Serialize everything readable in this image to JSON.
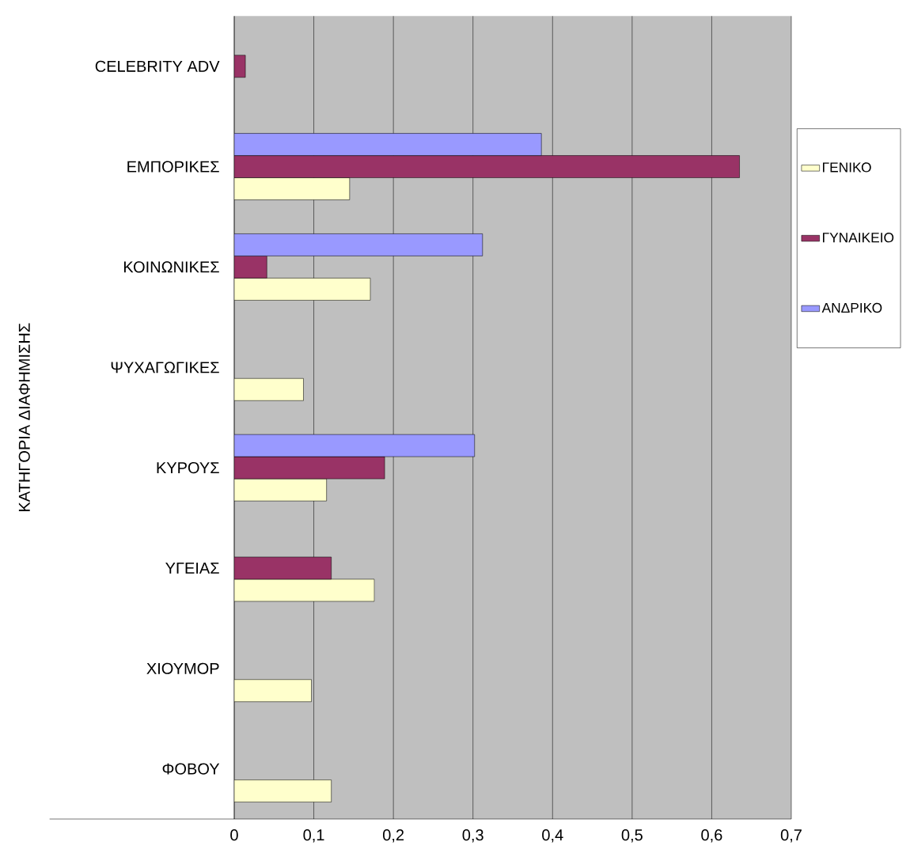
{
  "chart_data": {
    "type": "bar",
    "orientation": "horizontal",
    "ylabel": "ΚΑΤΗΓΟΡΙΑ ΔΙΑΦΗΜΙΣΗΣ",
    "categories": [
      "CELEBRITY ADV",
      "ΕΜΠΟΡΙΚΕΣ",
      "ΚΟΙΝΩΝΙΚΕΣ",
      "ΨΥΧΑΓΩΓΙΚΕΣ",
      "ΚΥΡΟΥΣ",
      "ΥΓΕΙΑΣ",
      "ΧΙΟΥΜΟΡ",
      "ΦΟΒΟΥ"
    ],
    "series": [
      {
        "name": "ΓΕΝΙΚΟ",
        "color": "#ffffcc",
        "values": [
          null,
          0.145,
          0.171,
          0.087,
          0.116,
          0.176,
          0.097,
          0.122
        ]
      },
      {
        "name": "ΓΥΝΑΙΚΕΙΟ",
        "color": "#993366",
        "values": [
          0.014,
          0.635,
          0.041,
          null,
          0.189,
          0.122,
          null,
          null
        ]
      },
      {
        "name": "ΑΝΔΡΙΚΟ",
        "color": "#9999ff",
        "values": [
          null,
          0.386,
          0.312,
          null,
          0.302,
          null,
          null,
          null
        ]
      }
    ],
    "xlim": [
      0,
      0.7
    ],
    "xticks": [
      {
        "value": 0,
        "label": "0"
      },
      {
        "value": 0.1,
        "label": "0,1"
      },
      {
        "value": 0.2,
        "label": "0,2"
      },
      {
        "value": 0.3,
        "label": "0,3"
      },
      {
        "value": 0.4,
        "label": "0,4"
      },
      {
        "value": 0.5,
        "label": "0,5"
      },
      {
        "value": 0.6,
        "label": "0,6"
      },
      {
        "value": 0.7,
        "label": "0,7"
      }
    ],
    "grid": "x",
    "legend": "right"
  }
}
